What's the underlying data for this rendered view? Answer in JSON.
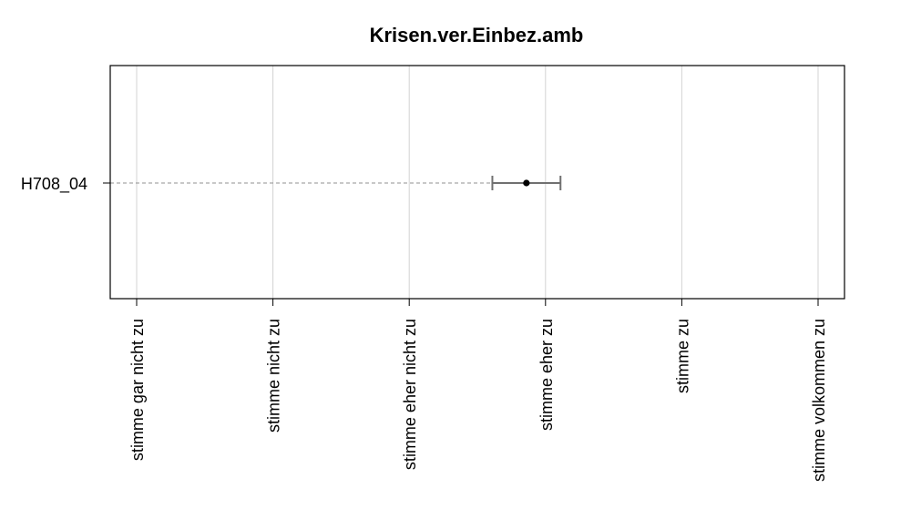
{
  "chart_data": {
    "type": "scatter",
    "title": "Krisen.ver.Einbez.amb",
    "categories": [
      "H708_04"
    ],
    "xlabel": "",
    "ylabel": "",
    "xlim": [
      0.6,
      6.0
    ],
    "x_tick_values": [
      1,
      2,
      3,
      4,
      5,
      6
    ],
    "x_tick_labels": [
      "stimme gar nicht zu",
      "stimme nicht zu",
      "stimme eher nicht zu",
      "stimme eher zu",
      "stimme zu",
      "stimme volkommen zu"
    ],
    "grid": true,
    "series": [
      {
        "category": "H708_04",
        "mean": 3.86,
        "ci_low": 3.61,
        "ci_high": 4.11
      }
    ],
    "colors": {
      "grid": "#d3d3d3",
      "guide": "#909090",
      "errorbar": "#707070",
      "point": "#000000",
      "frame": "#000000"
    }
  }
}
